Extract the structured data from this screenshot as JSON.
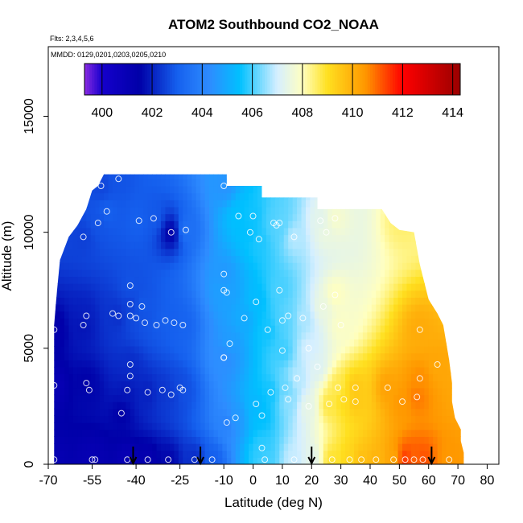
{
  "chart_data": {
    "type": "heatmap",
    "title": "ATOM2 Southbound CO2_NOAA",
    "notes": [
      "Flts: 2,3,4,5,6",
      "MMDD: 0129,0201,0203,0205,0210"
    ],
    "xlabel": "Latitude (deg N)",
    "ylabel": "Altitude (m)",
    "xlim": [
      -70,
      84
    ],
    "ylim": [
      0,
      18000
    ],
    "x_ticks": [
      -70,
      -55,
      -40,
      -25,
      -10,
      0,
      10,
      20,
      30,
      40,
      50,
      60,
      70,
      80
    ],
    "x_tick_labels": [
      "-70",
      "-55",
      "-40",
      "-25",
      "-10",
      "0",
      "10",
      "20",
      "30",
      "40",
      "50",
      "60",
      "70",
      "80"
    ],
    "y_ticks": [
      0,
      5000,
      10000,
      15000
    ],
    "y_tick_labels": [
      "0",
      "5000",
      "10000",
      "15000"
    ],
    "colorbar": {
      "min": 399.3,
      "max": 414.3,
      "ticks": [
        400,
        402,
        404,
        406,
        408,
        410,
        412,
        414
      ],
      "tick_labels": [
        "400",
        "402",
        "404",
        "406",
        "408",
        "410",
        "412",
        "414"
      ],
      "color_stops": [
        {
          "value": 399.3,
          "color": "#8a2be2"
        },
        {
          "value": 400.0,
          "color": "#1500cc"
        },
        {
          "value": 401.5,
          "color": "#0000a8"
        },
        {
          "value": 403.0,
          "color": "#1560ee"
        },
        {
          "value": 404.3,
          "color": "#2e8cff"
        },
        {
          "value": 405.5,
          "color": "#00c0ff"
        },
        {
          "value": 407.0,
          "color": "#d6efff"
        },
        {
          "value": 408.0,
          "color": "#ffffc0"
        },
        {
          "value": 409.0,
          "color": "#ffe020"
        },
        {
          "value": 410.5,
          "color": "#ff9800"
        },
        {
          "value": 412.0,
          "color": "#ff0000"
        },
        {
          "value": 414.3,
          "color": "#990000"
        }
      ]
    },
    "arrows_latitude": [
      -41,
      -18,
      20,
      61
    ],
    "samples": [
      [
        -68,
        200,
        401.1
      ],
      [
        -68,
        3400,
        401.0
      ],
      [
        -68,
        5800,
        401.3
      ],
      [
        -57,
        6400,
        402.0
      ],
      [
        -58,
        6000,
        401.8
      ],
      [
        -57,
        3500,
        401.5
      ],
      [
        -56,
        3200,
        401.6
      ],
      [
        -55,
        200,
        401.0
      ],
      [
        -54,
        200,
        401.2
      ],
      [
        -58,
        9800,
        402.5
      ],
      [
        -53,
        10400,
        402.8
      ],
      [
        -50,
        10900,
        403.0
      ],
      [
        -52,
        12000,
        402.6
      ],
      [
        -46,
        12300,
        402.8
      ],
      [
        -48,
        6500,
        402.3
      ],
      [
        -46,
        6400,
        402.2
      ],
      [
        -45,
        2200,
        401.5
      ],
      [
        -43,
        200,
        401.0
      ],
      [
        -43,
        3200,
        401.8
      ],
      [
        -42,
        3800,
        402.1
      ],
      [
        -42,
        4300,
        402.2
      ],
      [
        -42,
        6900,
        402.5
      ],
      [
        -42,
        7700,
        402.8
      ],
      [
        -42,
        6400,
        402.6
      ],
      [
        -40,
        6300,
        402.7
      ],
      [
        -39,
        10500,
        403.0
      ],
      [
        -38,
        6800,
        402.9
      ],
      [
        -37,
        6100,
        402.8
      ],
      [
        -36,
        3100,
        402.0
      ],
      [
        -36,
        200,
        401.2
      ],
      [
        -34,
        10600,
        402.9
      ],
      [
        -33,
        6000,
        402.9
      ],
      [
        -31,
        3200,
        402.3
      ],
      [
        -30,
        6200,
        403.0
      ],
      [
        -29,
        200,
        401.6
      ],
      [
        -28,
        10000,
        401.5
      ],
      [
        -28,
        3000,
        402.4
      ],
      [
        -27,
        6100,
        403.0
      ],
      [
        -25,
        3300,
        402.6
      ],
      [
        -24,
        3200,
        402.8
      ],
      [
        -24,
        6000,
        403.1
      ],
      [
        -23,
        10100,
        403.5
      ],
      [
        -20,
        200,
        402.2
      ],
      [
        -14,
        200,
        403.0
      ],
      [
        -10,
        12000,
        404.5
      ],
      [
        -10,
        8200,
        404.6
      ],
      [
        -10,
        7500,
        404.7
      ],
      [
        -10,
        4600,
        404.4
      ],
      [
        -10,
        4600,
        404.3
      ],
      [
        -9,
        1800,
        404.0
      ],
      [
        -9,
        7400,
        404.8
      ],
      [
        -8,
        5200,
        404.7
      ],
      [
        -6,
        2000,
        404.6
      ],
      [
        -5,
        10700,
        405.5
      ],
      [
        -3,
        6300,
        405.0
      ],
      [
        -1,
        10000,
        405.5
      ],
      [
        0,
        10700,
        405.6
      ],
      [
        1,
        2600,
        405.3
      ],
      [
        1,
        7000,
        405.4
      ],
      [
        2,
        9700,
        405.7
      ],
      [
        3,
        2100,
        405.5
      ],
      [
        3,
        700,
        405.8
      ],
      [
        4,
        200,
        406.0
      ],
      [
        5,
        5800,
        405.6
      ],
      [
        6,
        3100,
        405.6
      ],
      [
        7,
        10400,
        406.0
      ],
      [
        8,
        10300,
        406.1
      ],
      [
        9,
        10400,
        406.2
      ],
      [
        9,
        7500,
        406.0
      ],
      [
        10,
        4900,
        405.9
      ],
      [
        10,
        6200,
        406.0
      ],
      [
        11,
        3300,
        406.2
      ],
      [
        12,
        2800,
        406.5
      ],
      [
        12,
        6400,
        406.2
      ],
      [
        14,
        200,
        406.9
      ],
      [
        14,
        9800,
        406.8
      ],
      [
        15,
        3700,
        406.8
      ],
      [
        17,
        6300,
        406.7
      ],
      [
        19,
        5000,
        407.0
      ],
      [
        19,
        2500,
        407.4
      ],
      [
        20,
        200,
        407.3
      ],
      [
        22,
        4200,
        407.2
      ],
      [
        23,
        10500,
        407.3
      ],
      [
        24,
        6800,
        407.5
      ],
      [
        25,
        10000,
        407.5
      ],
      [
        26,
        2600,
        408.8
      ],
      [
        27,
        200,
        408.9
      ],
      [
        28,
        10600,
        407.8
      ],
      [
        28,
        7300,
        408.0
      ],
      [
        29,
        3300,
        408.7
      ],
      [
        30,
        6000,
        407.9
      ],
      [
        31,
        2800,
        409.1
      ],
      [
        33,
        200,
        409.2
      ],
      [
        35,
        3300,
        409.5
      ],
      [
        35,
        2700,
        409.5
      ],
      [
        37,
        200,
        409.7
      ],
      [
        42,
        200,
        409.9
      ],
      [
        46,
        3300,
        410.3
      ],
      [
        48,
        200,
        410.2
      ],
      [
        51,
        2700,
        410.5
      ],
      [
        51,
        10500,
        408.5
      ],
      [
        52,
        200,
        411.5
      ],
      [
        55,
        200,
        411.0
      ],
      [
        56,
        2900,
        410.8
      ],
      [
        57,
        3700,
        410.6
      ],
      [
        57,
        5800,
        410.1
      ],
      [
        58,
        200,
        411.2
      ],
      [
        63,
        4300,
        410.2
      ],
      [
        67,
        200,
        410.5
      ]
    ]
  }
}
